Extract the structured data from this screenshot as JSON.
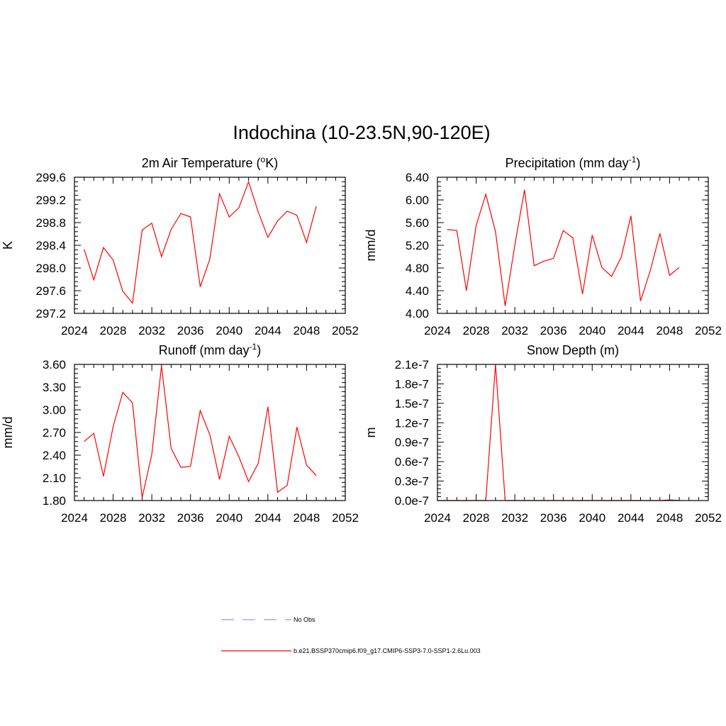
{
  "figure": {
    "title": "Indochina (10-23.5N,90-120E)"
  },
  "legend": {
    "entries": [
      {
        "label": "No Obs",
        "color": "#9999ee",
        "dash": true
      },
      {
        "label": "b.e21.BSSP370cmip6.f09_g17.CMIP6-SSP3-7.0-SSP1-2.6Lu.003",
        "color": "#ff0000",
        "dash": false
      }
    ]
  },
  "chart_data": [
    {
      "type": "line",
      "title": "2m Air Temperature (°K)",
      "title_base": "2m Air Temperature (",
      "title_sup": "o",
      "title_tail": "K)",
      "xlabel": "",
      "ylabel": "K",
      "xlim": [
        2024,
        2052
      ],
      "ylim": [
        297.2,
        299.6
      ],
      "xticks": [
        2024,
        2028,
        2032,
        2036,
        2040,
        2044,
        2048,
        2052
      ],
      "yticks": [
        297.2,
        297.6,
        298.0,
        298.4,
        298.8,
        299.2,
        299.6
      ],
      "ytick_labels": [
        "297.2",
        "297.6",
        "298.0",
        "298.4",
        "298.8",
        "299.2",
        "299.6"
      ],
      "series": [
        {
          "color": "#ff0000",
          "x": [
            2025,
            2026,
            2027,
            2028,
            2029,
            2030,
            2031,
            2032,
            2033,
            2034,
            2035,
            2036,
            2037,
            2038,
            2039,
            2040,
            2041,
            2042,
            2043,
            2044,
            2045,
            2046,
            2047,
            2048,
            2049
          ],
          "y": [
            298.33,
            297.79,
            298.36,
            298.14,
            297.59,
            297.38,
            298.67,
            298.79,
            298.2,
            298.68,
            298.96,
            298.9,
            297.67,
            298.16,
            299.31,
            298.9,
            299.06,
            299.52,
            298.99,
            298.54,
            298.83,
            299.0,
            298.93,
            298.45,
            299.09
          ]
        }
      ]
    },
    {
      "type": "line",
      "title": "Precipitation (mm day-1)",
      "title_base": "Precipitation (mm day",
      "title_sup": "-1",
      "title_tail": ")",
      "xlabel": "",
      "ylabel": "mm/d",
      "xlim": [
        2024,
        2052
      ],
      "ylim": [
        4.0,
        6.4
      ],
      "xticks": [
        2024,
        2028,
        2032,
        2036,
        2040,
        2044,
        2048,
        2052
      ],
      "yticks": [
        4.0,
        4.4,
        4.8,
        5.2,
        5.6,
        6.0,
        6.4
      ],
      "ytick_labels": [
        "4.00",
        "4.40",
        "4.80",
        "5.20",
        "5.60",
        "6.00",
        "6.40"
      ],
      "series": [
        {
          "color": "#ff0000",
          "x": [
            2025,
            2026,
            2027,
            2028,
            2029,
            2030,
            2031,
            2032,
            2033,
            2034,
            2035,
            2036,
            2037,
            2038,
            2039,
            2040,
            2041,
            2042,
            2043,
            2044,
            2045,
            2046,
            2047,
            2048,
            2049
          ],
          "y": [
            5.48,
            5.46,
            4.4,
            5.55,
            6.1,
            5.44,
            4.13,
            5.2,
            6.18,
            4.84,
            4.92,
            4.97,
            5.46,
            5.33,
            4.34,
            5.38,
            4.81,
            4.65,
            4.99,
            5.72,
            4.22,
            4.75,
            5.41,
            4.67,
            4.81
          ]
        }
      ]
    },
    {
      "type": "line",
      "title": "Runoff (mm day-1)",
      "title_base": "Runoff (mm day",
      "title_sup": "-1",
      "title_tail": ")",
      "xlabel": "",
      "ylabel": "mm/d",
      "xlim": [
        2024,
        2052
      ],
      "ylim": [
        1.8,
        3.6
      ],
      "xticks": [
        2024,
        2028,
        2032,
        2036,
        2040,
        2044,
        2048,
        2052
      ],
      "yticks": [
        1.8,
        2.1,
        2.4,
        2.7,
        3.0,
        3.3,
        3.6
      ],
      "ytick_labels": [
        "1.80",
        "2.10",
        "2.40",
        "2.70",
        "3.00",
        "3.30",
        "3.60"
      ],
      "series": [
        {
          "color": "#ff0000",
          "x": [
            2025,
            2026,
            2027,
            2028,
            2029,
            2030,
            2031,
            2032,
            2033,
            2034,
            2035,
            2036,
            2037,
            2038,
            2039,
            2040,
            2041,
            2042,
            2043,
            2044,
            2045,
            2046,
            2047,
            2048,
            2049
          ],
          "y": [
            2.58,
            2.69,
            2.12,
            2.78,
            3.23,
            3.09,
            1.84,
            2.41,
            3.58,
            2.49,
            2.24,
            2.25,
            2.99,
            2.67,
            2.08,
            2.65,
            2.38,
            2.05,
            2.29,
            3.04,
            1.91,
            2.0,
            2.77,
            2.27,
            2.13
          ]
        }
      ]
    },
    {
      "type": "line",
      "title": "Snow Depth (m)",
      "title_base": "Snow Depth (m)",
      "title_sup": "",
      "title_tail": "",
      "xlabel": "",
      "ylabel": "m",
      "xlim": [
        2024,
        2052
      ],
      "ylim": [
        0.0,
        2.1e-07
      ],
      "xticks": [
        2024,
        2028,
        2032,
        2036,
        2040,
        2044,
        2048,
        2052
      ],
      "yticks": [
        0.0,
        3e-08,
        6e-08,
        9e-08,
        1.2e-07,
        1.5e-07,
        1.8e-07,
        2.1e-07
      ],
      "ytick_labels": [
        "0.0e-7",
        "0.3e-7",
        "0.6e-7",
        "0.9e-7",
        "1.2e-7",
        "1.5e-7",
        "1.8e-7",
        "2.1e-7"
      ],
      "series": [
        {
          "color": "#ff0000",
          "x": [
            2024,
            2025,
            2026,
            2027,
            2028,
            2029,
            2030,
            2031,
            2032,
            2033,
            2034,
            2035,
            2036,
            2037,
            2038,
            2039,
            2040,
            2041,
            2042,
            2043,
            2044,
            2045,
            2046,
            2047,
            2048,
            2049
          ],
          "y": [
            0,
            0,
            0,
            0,
            0,
            0,
            2.1e-07,
            0,
            0,
            0,
            0,
            0,
            0,
            0,
            0,
            0,
            0,
            0,
            0,
            5e-11,
            0,
            0,
            0,
            0,
            1e-09,
            0
          ]
        }
      ]
    }
  ]
}
